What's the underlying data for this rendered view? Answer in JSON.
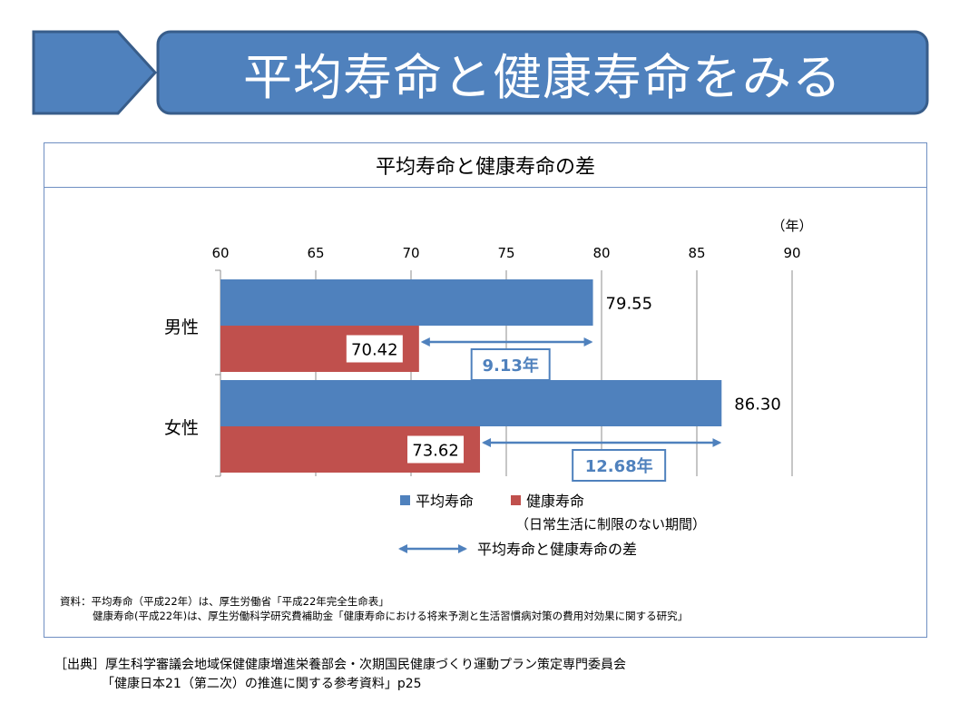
{
  "banner": {
    "title": "平均寿命と健康寿命をみる",
    "color": "#4f81bd"
  },
  "panel": {
    "title": "平均寿命と健康寿命の差"
  },
  "chart_data": {
    "type": "bar",
    "orientation": "horizontal",
    "unit_label": "（年）",
    "xlim": [
      60,
      90
    ],
    "ticks": [
      "60",
      "65",
      "70",
      "75",
      "80",
      "85",
      "90"
    ],
    "grid": true,
    "categories": [
      "男性",
      "女性"
    ],
    "series": [
      {
        "name": "平均寿命",
        "color": "#4f81bd",
        "values": [
          79.55,
          86.3
        ],
        "labels": [
          "79.55",
          "86.30"
        ]
      },
      {
        "name": "健康寿命",
        "color": "#c0504d",
        "values": [
          70.42,
          73.62
        ],
        "labels": [
          "70.42",
          "73.62"
        ]
      }
    ],
    "differences": [
      "9.13年",
      "12.68年"
    ],
    "legend": {
      "subnote": "（日常生活に制限のない期間）",
      "arrow_label": "平均寿命と健康寿命の差"
    }
  },
  "source": {
    "line1": "資料：平均寿命（平成22年）は、厚生労働省「平成22年完全生命表」",
    "line2": "健康寿命(平成22年)は、厚生労働科学研究費補助金「健康寿命における将来予測と生活習慣病対策の費用対効果に関する研究」"
  },
  "citation": {
    "line1": "［出典］厚生科学審議会地域保健健康増進栄養部会・次期国民健康づくり運動プラン策定専門委員会",
    "line2": "「健康日本21（第二次）の推進に関する参考資料」p25"
  }
}
